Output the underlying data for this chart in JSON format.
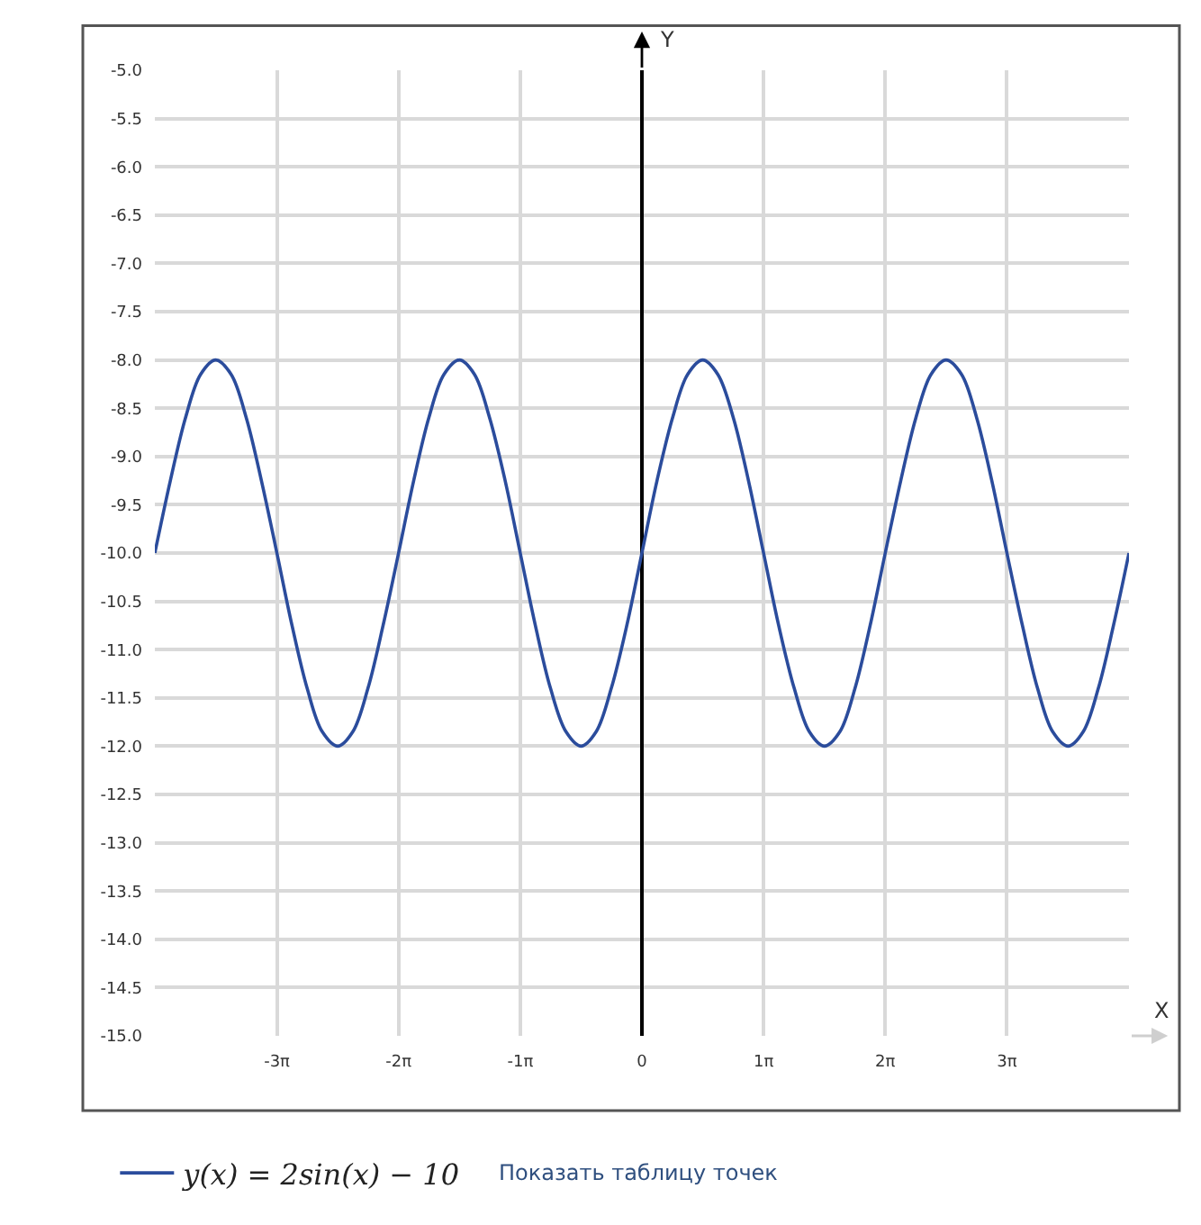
{
  "chart_data": {
    "type": "line",
    "xlabel": "X",
    "ylabel": "Y",
    "x": [
      -12.57,
      -12.17,
      -11.78,
      -11.39,
      -11,
      -10.6,
      -10.21,
      -9.82,
      -9.42,
      -9.03,
      -8.64,
      -8.25,
      -7.85,
      -7.46,
      -7.07,
      -6.68,
      -6.28,
      -5.89,
      -5.5,
      -5.11,
      -4.71,
      -4.32,
      -3.93,
      -3.53,
      -3.14,
      -2.75,
      -2.36,
      -1.96,
      -1.57,
      -1.18,
      -0.79,
      -0.39,
      0,
      0.39,
      0.79,
      1.18,
      1.57,
      1.96,
      2.36,
      2.75,
      3.14,
      3.53,
      3.93,
      4.32,
      4.71,
      5.11,
      5.5,
      5.89,
      6.28,
      6.68,
      7.07,
      7.46,
      7.85,
      8.25,
      8.64,
      9.03,
      9.42,
      9.82,
      10.21,
      10.6,
      11,
      11.39,
      11.78,
      12.17,
      12.57
    ],
    "series": [
      {
        "name": "y(x) = 2sin(x) − 10",
        "color": "#2b4c9c",
        "values": [
          -10,
          -9.25,
          -8.6,
          -8.15,
          -8,
          -8.15,
          -8.6,
          -9.25,
          -10,
          -10.75,
          -11.4,
          -11.85,
          -12,
          -11.85,
          -11.4,
          -10.75,
          -10,
          -9.25,
          -8.6,
          -8.15,
          -8,
          -8.15,
          -8.6,
          -9.25,
          -10,
          -10.75,
          -11.4,
          -11.85,
          -12,
          -11.85,
          -11.4,
          -10.75,
          -10,
          -9.25,
          -8.6,
          -8.15,
          -8,
          -8.15,
          -8.6,
          -9.25,
          -10,
          -10.75,
          -11.4,
          -11.85,
          -12,
          -11.85,
          -11.4,
          -10.75,
          -10,
          -9.25,
          -8.6,
          -8.15,
          -8,
          -8.15,
          -8.6,
          -9.25,
          -10,
          -10.75,
          -11.4,
          -11.85,
          -12,
          -11.85,
          -11.4,
          -10.75,
          -10
        ]
      }
    ],
    "xlim": [
      -12.57,
      12.57
    ],
    "xticks": [
      {
        "value": -9.42,
        "label": "-3π"
      },
      {
        "value": -6.28,
        "label": "-2π"
      },
      {
        "value": -3.14,
        "label": "-1π"
      },
      0,
      {
        "value": 3.14,
        "label": "1π"
      },
      {
        "value": 6.28,
        "label": "2π"
      },
      {
        "value": 9.42,
        "label": "3π"
      }
    ],
    "ylim": [
      -15,
      -5
    ],
    "yticks": [
      {
        "value": -15,
        "label": "-15.0"
      },
      -14.5,
      {
        "value": -14,
        "label": "-14.0"
      },
      -13.5,
      {
        "value": -13,
        "label": "-13.0"
      },
      -12.5,
      {
        "value": -12,
        "label": "-12.0"
      },
      -11.5,
      {
        "value": -11,
        "label": "-11.0"
      },
      -10.5,
      {
        "value": -10,
        "label": "-10.0"
      },
      -9.5,
      {
        "value": -9,
        "label": "-9.0"
      },
      -8.5,
      {
        "value": -8,
        "label": "-8.0"
      },
      -7.5,
      {
        "value": -7,
        "label": "-7.0"
      },
      -6.5,
      {
        "value": -6,
        "label": "-6.0"
      },
      -5.5,
      {
        "value": -5,
        "label": "-5.0"
      }
    ],
    "grid": true,
    "legend": "bottom left",
    "annotations": [
      "Показать таблицу точек"
    ]
  }
}
